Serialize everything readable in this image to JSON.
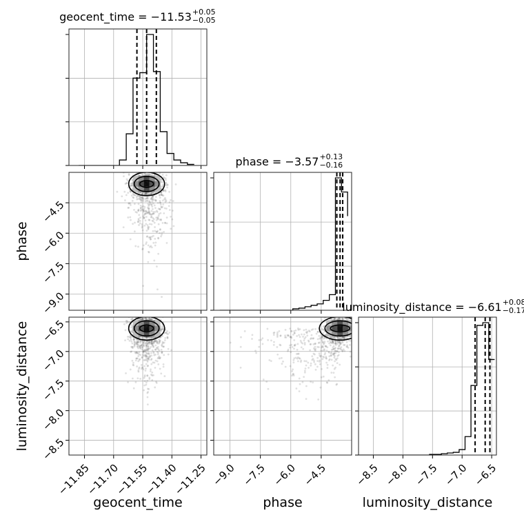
{
  "chart_data": {
    "type": "corner",
    "parameters": [
      "geocent_time",
      "phase",
      "luminosity_distance"
    ],
    "axis_labels": {
      "x": [
        "geocent_time",
        "phase",
        "luminosity_distance"
      ],
      "y": [
        "",
        "phase",
        "luminosity_distance"
      ]
    },
    "titles": [
      {
        "name": "geocent_time",
        "median": "−11.53",
        "plus": "+0.05",
        "minus": "−0.05"
      },
      {
        "name": "phase",
        "median": "−3.57",
        "plus": "+0.13",
        "minus": "−0.16"
      },
      {
        "name": "luminosity_distance",
        "median": "−6.61",
        "plus": "+0.08",
        "minus": "−0.17"
      }
    ],
    "ranges": {
      "geocent_time": [
        -11.93,
        -11.22
      ],
      "phase": [
        -9.8,
        -3.0
      ],
      "luminosity_distance": [
        -8.75,
        -6.42
      ]
    },
    "ticks": {
      "geocent_time": [
        -11.85,
        -11.7,
        -11.55,
        -11.4,
        -11.25
      ],
      "phase": [
        -9.0,
        -7.5,
        -6.0,
        -4.5
      ],
      "luminosity_distance": [
        -8.5,
        -8.0,
        -7.5,
        -7.0,
        -6.5
      ]
    },
    "tick_labels": {
      "geocent_time": [
        "−11.85",
        "−11.70",
        "−11.55",
        "−11.40",
        "−11.25"
      ],
      "phase": [
        "−9.0",
        "−7.5",
        "−6.0",
        "−4.5"
      ],
      "luminosity_distance": [
        "−8.5",
        "−8.0",
        "−7.5",
        "−7.0",
        "−6.5"
      ],
      "phase_y": [
        "−4.5",
        "−6.0",
        "−7.5",
        "−9.0"
      ],
      "luminosity_distance_y": [
        "−6.5",
        "−7.0",
        "−7.5",
        "−8.0",
        "−8.5"
      ]
    },
    "quantiles": {
      "geocent_time": [
        -11.58,
        -11.53,
        -11.48
      ],
      "phase": [
        -3.73,
        -3.57,
        -3.44
      ],
      "luminosity_distance": [
        -6.78,
        -6.61,
        -6.53
      ]
    },
    "histograms": {
      "geocent_time": {
        "edges": [
          -11.88,
          -11.845,
          -11.81,
          -11.775,
          -11.74,
          -11.705,
          -11.67,
          -11.635,
          -11.6,
          -11.565,
          -11.53,
          -11.495,
          -11.46,
          -11.425,
          -11.39,
          -11.355,
          -11.32,
          -11.285
        ],
        "counts": [
          0,
          0,
          0,
          0,
          0,
          0,
          10,
          58,
          160,
          170,
          240,
          172,
          62,
          22,
          10,
          5,
          2
        ]
      },
      "phase": {
        "edges": [
          -9.5,
          -9.2,
          -8.9,
          -8.6,
          -8.3,
          -8.0,
          -7.7,
          -7.4,
          -7.1,
          -6.8,
          -6.5,
          -6.2,
          -5.9,
          -5.6,
          -5.3,
          -5.0,
          -4.7,
          -4.4,
          -4.1,
          -3.8,
          -3.5,
          -3.2
        ],
        "counts": [
          0,
          0,
          0,
          0,
          0,
          0,
          0,
          0,
          0,
          0,
          0,
          0,
          2,
          3,
          5,
          7,
          9,
          14,
          22,
          187,
          167,
          133
        ]
      },
      "luminosity_distance": {
        "edges": [
          -8.75,
          -8.65,
          -8.55,
          -8.45,
          -8.35,
          -8.25,
          -8.15,
          -8.05,
          -7.95,
          -7.85,
          -7.75,
          -7.65,
          -7.55,
          -7.45,
          -7.35,
          -7.25,
          -7.15,
          -7.05,
          -6.95,
          -6.85,
          -6.75,
          -6.65,
          -6.55,
          -6.45
        ],
        "counts": [
          0,
          0,
          0,
          0,
          0,
          0,
          0,
          0,
          0,
          0,
          0,
          0,
          1,
          1,
          2,
          3,
          4,
          8,
          27,
          102,
          190,
          194,
          140
        ]
      }
    },
    "grid": true
  }
}
